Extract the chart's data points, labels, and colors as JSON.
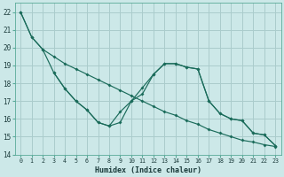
{
  "xlabel": "Humidex (Indice chaleur)",
  "background_color": "#cce8e8",
  "grid_color": "#aacccc",
  "line_color": "#1a6b5a",
  "xlim": [
    -0.5,
    23.5
  ],
  "ylim": [
    14,
    22.5
  ],
  "yticks": [
    14,
    15,
    16,
    17,
    18,
    19,
    20,
    21,
    22
  ],
  "xticks": [
    0,
    1,
    2,
    3,
    4,
    5,
    6,
    7,
    8,
    9,
    10,
    11,
    12,
    13,
    14,
    15,
    16,
    17,
    18,
    19,
    20,
    21,
    22,
    23
  ],
  "line1_x": [
    0,
    1,
    2,
    3,
    4,
    5,
    6,
    7,
    8,
    9,
    10,
    11,
    12,
    13,
    14,
    15,
    16,
    17,
    18,
    19,
    20,
    21,
    22,
    23
  ],
  "line1_y": [
    22.0,
    20.6,
    19.9,
    19.5,
    19.1,
    18.8,
    18.5,
    18.2,
    17.9,
    17.6,
    17.3,
    17.0,
    16.7,
    16.4,
    16.2,
    15.9,
    15.7,
    15.4,
    15.2,
    15.0,
    14.8,
    14.7,
    14.55,
    14.45
  ],
  "line2_x": [
    0,
    1,
    2,
    3,
    4,
    5,
    6,
    7,
    8,
    9,
    10,
    11,
    12,
    13,
    14,
    15,
    16,
    17,
    18,
    19,
    20,
    21,
    22,
    23
  ],
  "line2_y": [
    22.0,
    20.6,
    19.9,
    18.6,
    17.7,
    17.0,
    16.5,
    15.8,
    15.6,
    15.8,
    17.0,
    17.4,
    18.5,
    19.1,
    19.1,
    18.9,
    18.8,
    17.0,
    16.3,
    16.0,
    15.9,
    15.2,
    15.1,
    14.5
  ],
  "line3_x": [
    3,
    4,
    5,
    6,
    7,
    8,
    9,
    10,
    11,
    12,
    13,
    14,
    15,
    16,
    17,
    18,
    19,
    20,
    21,
    22,
    23
  ],
  "line3_y": [
    18.6,
    17.7,
    17.0,
    16.5,
    15.8,
    15.6,
    16.4,
    17.0,
    17.75,
    18.5,
    19.1,
    19.1,
    18.9,
    18.8,
    17.0,
    16.3,
    16.0,
    15.9,
    15.2,
    15.1,
    14.5
  ]
}
